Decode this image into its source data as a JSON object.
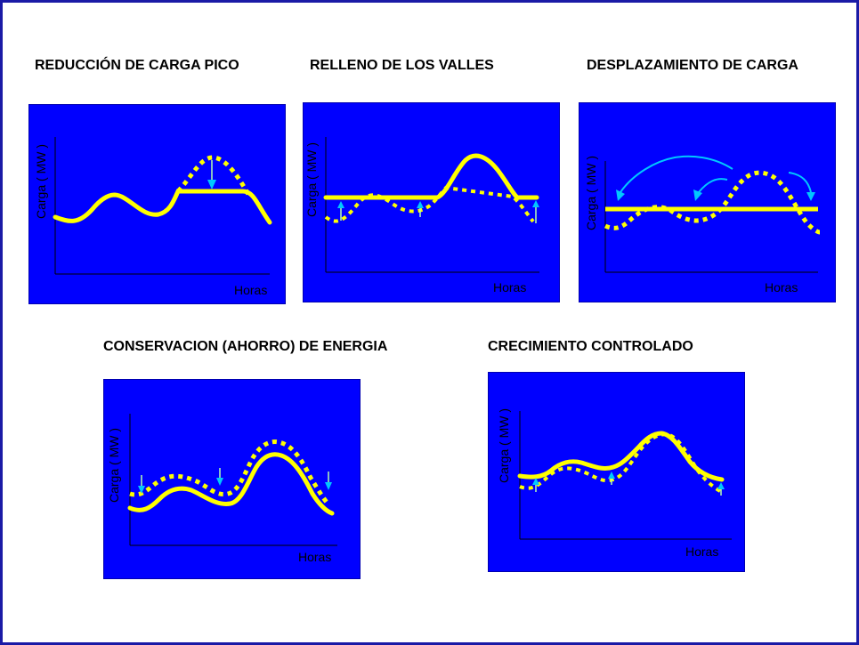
{
  "colors": {
    "panel_bg": "#0000ff",
    "curve": "#ffff00",
    "arrow_pale": "#b9ffb0",
    "arrow_cyan": "#00c8ff",
    "frame_border": "#1a1aa6"
  },
  "panels": {
    "peak": {
      "title": "REDUCCIÓN DE CARGA PICO",
      "ylabel": "Carga ( MW )",
      "xlabel": "Horas"
    },
    "valley": {
      "title": "RELLENO DE LOS VALLES",
      "ylabel": "Carga ( MW )",
      "xlabel": "Horas"
    },
    "shift": {
      "title": "DESPLAZAMIENTO DE CARGA",
      "ylabel": "Carga ( MW )",
      "xlabel": "Horas"
    },
    "conservation": {
      "title": "CONSERVACION (AHORRO) DE ENERGIA",
      "ylabel": "Carga ( MW )",
      "xlabel": "Horas"
    },
    "growth": {
      "title": "CRECIMIENTO CONTROLADO",
      "ylabel": "Carga ( MW )",
      "xlabel": "Horas"
    }
  }
}
